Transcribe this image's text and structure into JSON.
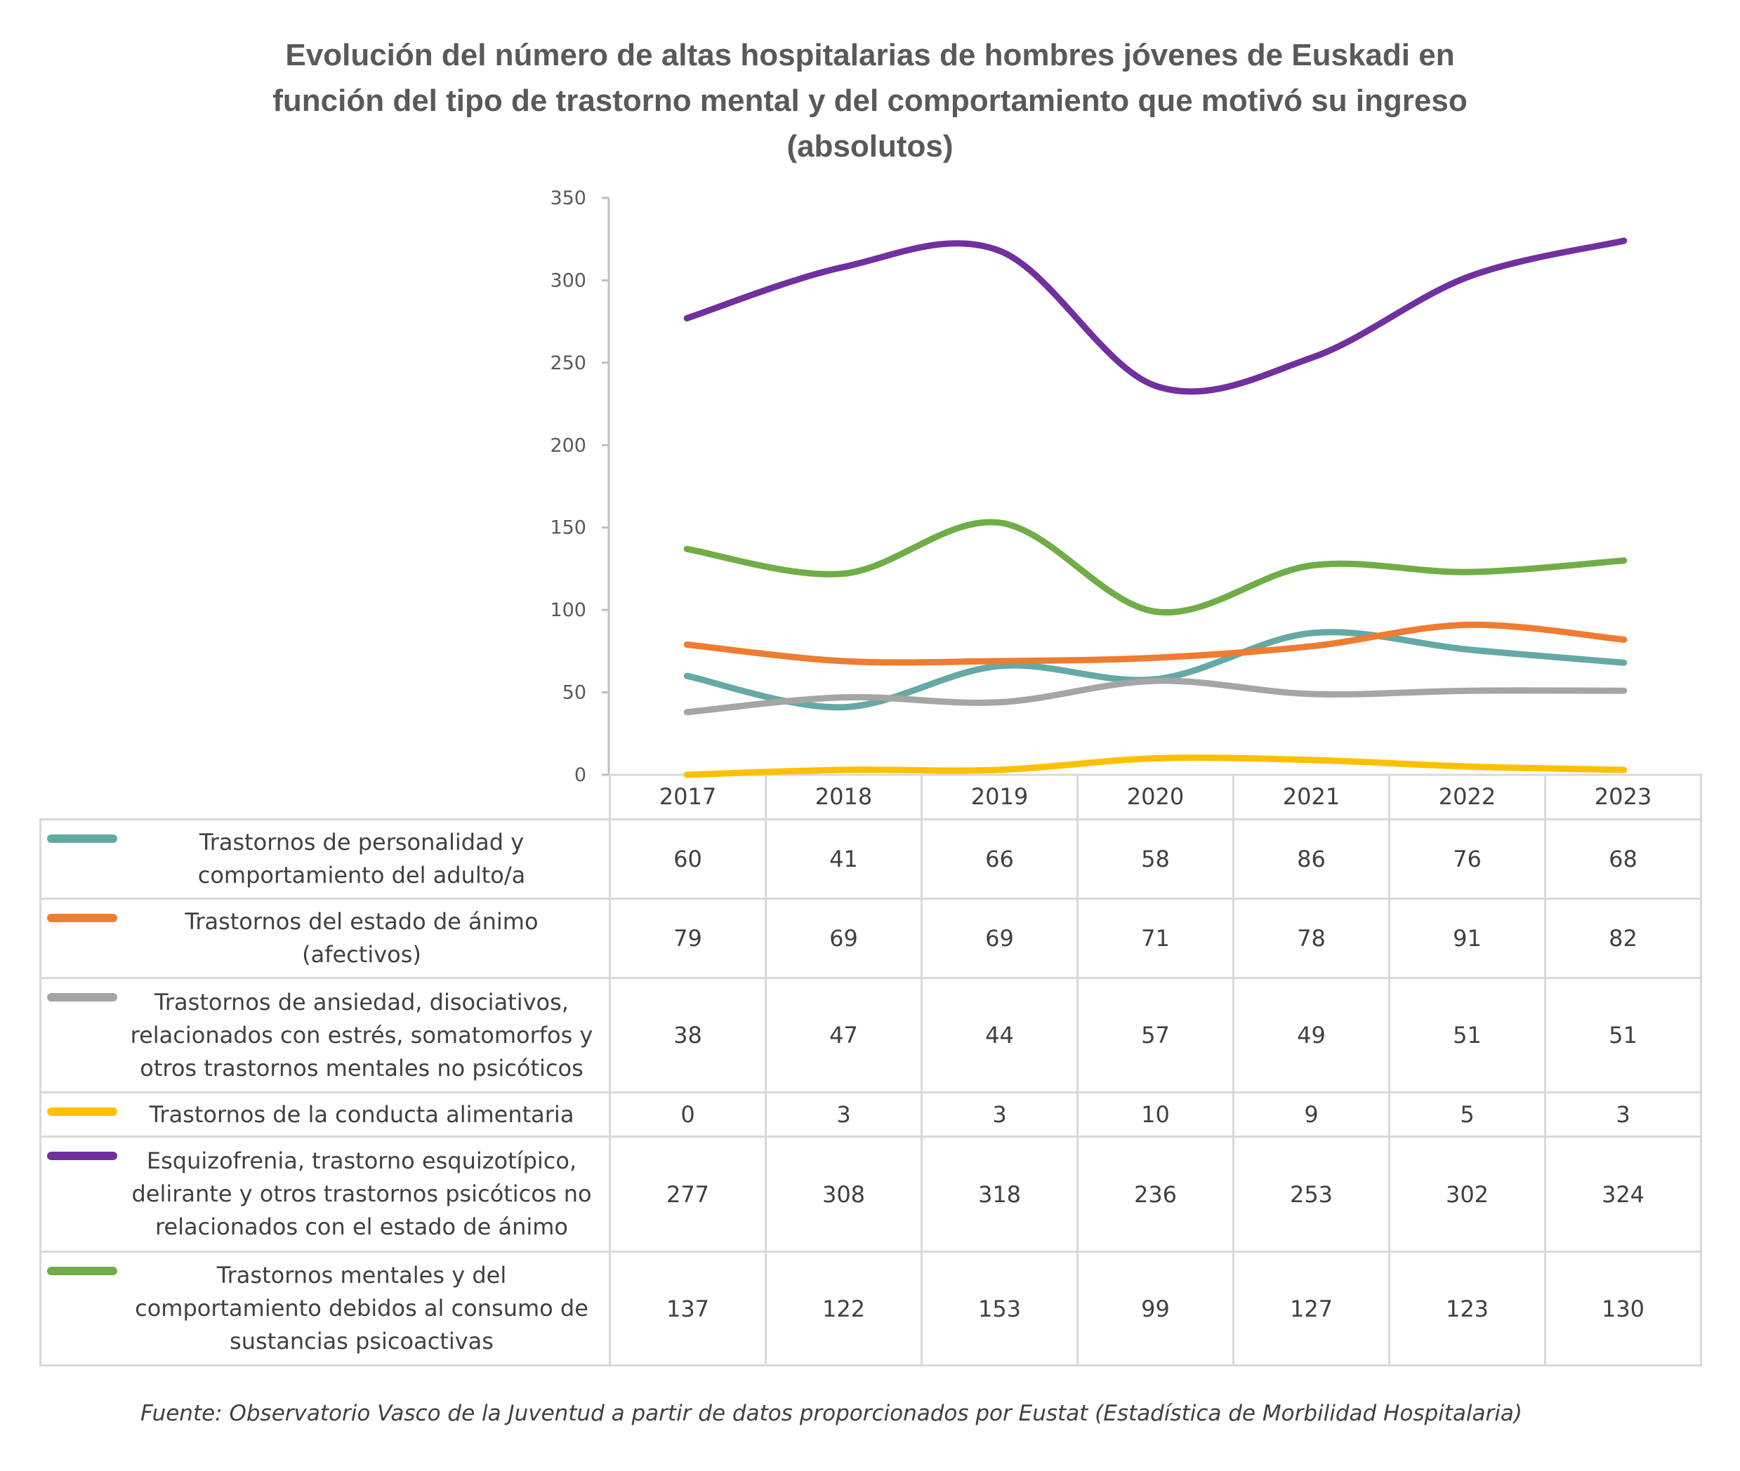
{
  "title_lines": [
    "Evolución del número de altas hospitalarias de hombres jóvenes de Euskadi en",
    "función del tipo de trastorno mental y del comportamiento que motivó su ingreso",
    "(absolutos)"
  ],
  "footnote": "Fuente: Observatorio Vasco de la Juventud a partir de datos proporcionados por Eustat (Estadística de Morbilidad Hospitalaria)",
  "chart_data": {
    "type": "line",
    "title": "Evolución del número de altas hospitalarias de hombres jóvenes de Euskadi en función del tipo de trastorno mental y del comportamiento que motivó su ingreso (absolutos)",
    "xlabel": "",
    "ylabel": "",
    "categories": [
      "2017",
      "2018",
      "2019",
      "2020",
      "2021",
      "2022",
      "2023"
    ],
    "ylim": [
      0,
      350
    ],
    "yticks": [
      "0",
      "50",
      "100",
      "150",
      "200",
      "250",
      "300",
      "350"
    ],
    "ytick_values": [
      0,
      50,
      100,
      150,
      200,
      250,
      300,
      350
    ],
    "smoothed": true,
    "grid": false,
    "legend": "data-table-below",
    "series": [
      {
        "name": "Trastornos de personalidad y comportamiento del adulto/a",
        "label_lines": [
          "Trastornos de personalidad y",
          "comportamiento del adulto/a"
        ],
        "color": "#64A9A5",
        "values": [
          60,
          41,
          66,
          58,
          86,
          76,
          68
        ]
      },
      {
        "name": "Trastornos del estado de ánimo (afectivos)",
        "label_lines": [
          "Trastornos del estado de ánimo",
          "(afectivos)"
        ],
        "color": "#ED7D31",
        "values": [
          79,
          69,
          69,
          71,
          78,
          91,
          82
        ]
      },
      {
        "name": "Trastornos de ansiedad, disociativos, relacionados con estrés, somatomorfos y otros trastornos mentales no psicóticos",
        "label_lines": [
          "Trastornos de ansiedad, disociativos,",
          "relacionados con estrés, somatomorfos y",
          "otros trastornos mentales no psicóticos"
        ],
        "color": "#A5A5A5",
        "values": [
          38,
          47,
          44,
          57,
          49,
          51,
          51
        ]
      },
      {
        "name": "Trastornos de la conducta alimentaria",
        "label_lines": [
          "Trastornos de la conducta alimentaria"
        ],
        "color": "#FFC000",
        "values": [
          0,
          3,
          3,
          10,
          9,
          5,
          3
        ]
      },
      {
        "name": "Esquizofrenia, trastorno esquizotípico, delirante y otros trastornos psicóticos no relacionados con el estado de ánimo",
        "label_lines": [
          "Esquizofrenia, trastorno esquizotípico,",
          "delirante y otros trastornos psicóticos no",
          "relacionados con el estado de ánimo"
        ],
        "color": "#7030A0",
        "values": [
          277,
          308,
          318,
          236,
          253,
          302,
          324
        ]
      },
      {
        "name": "Trastornos mentales y del comportamiento debidos al consumo de sustancias psicoactivas",
        "label_lines": [
          "Trastornos mentales y del",
          "comportamiento debidos al consumo de",
          "sustancias psicoactivas"
        ],
        "color": "#70AD47",
        "values": [
          137,
          122,
          153,
          99,
          127,
          123,
          130
        ]
      }
    ]
  }
}
